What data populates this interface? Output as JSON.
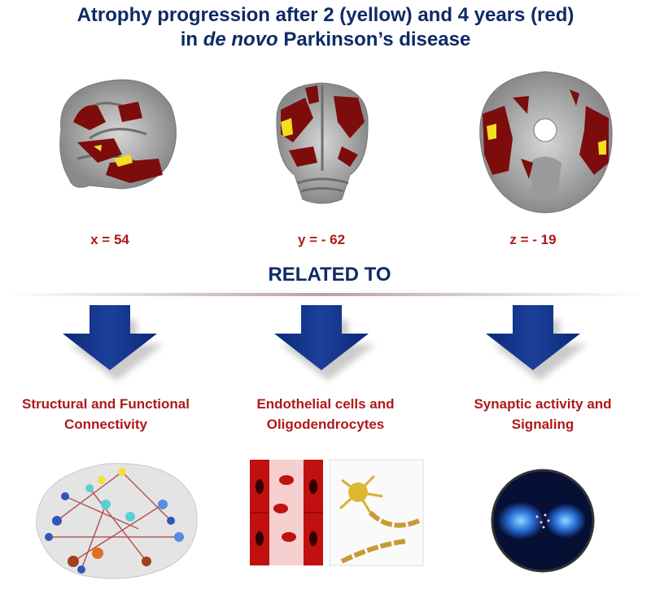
{
  "title": {
    "line1": "Atrophy progression after 2 (yellow) and 4 years (red)",
    "line2": {
      "before": "in ",
      "italic": "de novo",
      "after": " Parkinson’s disease"
    }
  },
  "slices": [
    {
      "label": "x = 54"
    },
    {
      "label": "y = - 62"
    },
    {
      "label": "z = - 19"
    }
  ],
  "related": "RELATED TO",
  "columns": [
    {
      "line1": "Structural and Functional",
      "line2": "Connectivity"
    },
    {
      "line1": "Endothelial cells and",
      "line2": "Oligodendrocytes"
    },
    {
      "line1": "Synaptic activity and",
      "line2": "Signaling"
    }
  ]
}
